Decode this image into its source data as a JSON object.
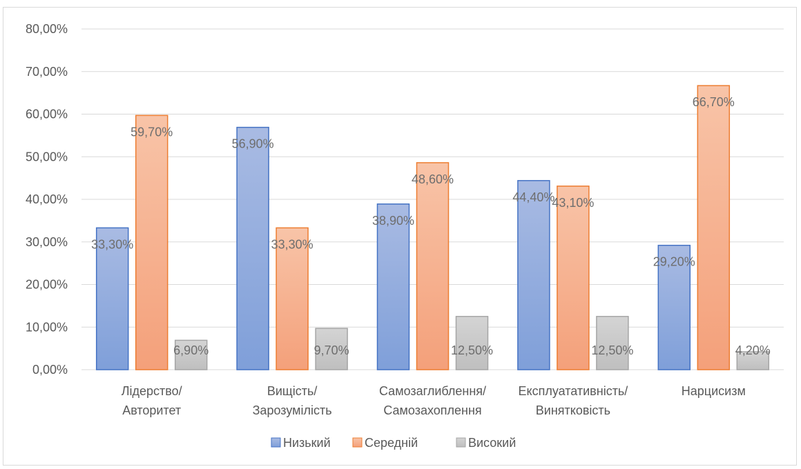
{
  "chart_data": {
    "type": "bar",
    "categories": [
      [
        "Лідерство/",
        "Авторитет"
      ],
      [
        "Вищість/",
        "Зарозумілість"
      ],
      [
        "Самозаглиблення/",
        "Самозахоплення"
      ],
      [
        "Експлуатативність/",
        "Винятковість"
      ],
      [
        "Нарцисизм"
      ]
    ],
    "series": [
      {
        "name": "Низький",
        "values": [
          33.3,
          56.9,
          38.9,
          44.4,
          29.2
        ],
        "labels": [
          "33,30%",
          "56,90%",
          "38,90%",
          "44,40%",
          "29,20%"
        ],
        "color": "#8faadc",
        "gradient": [
          "#a9bbe3",
          "#7f9fd9"
        ],
        "stroke": "#4472c4"
      },
      {
        "name": "Середній",
        "values": [
          59.7,
          33.3,
          48.6,
          43.1,
          66.7
        ],
        "labels": [
          "59,70%",
          "33,30%",
          "48,60%",
          "43,10%",
          "66,70%"
        ],
        "color": "#f4b183",
        "gradient": [
          "#f8c4a8",
          "#f4a07a"
        ],
        "stroke": "#ed7d31"
      },
      {
        "name": "Високий",
        "values": [
          6.9,
          9.7,
          12.5,
          12.5,
          4.2
        ],
        "labels": [
          "6,90%",
          "9,70%",
          "12,50%",
          "12,50%",
          "4,20%"
        ],
        "color": "#c9c9c9",
        "gradient": [
          "#d4d4d4",
          "#bfbfbf"
        ],
        "stroke": "#a5a5a5"
      }
    ],
    "yticks": [
      "0,00%",
      "10,00%",
      "20,00%",
      "30,00%",
      "40,00%",
      "50,00%",
      "60,00%",
      "70,00%",
      "80,00%"
    ],
    "ylim": [
      0,
      80
    ],
    "grid": true,
    "legend_position": "bottom",
    "title": "",
    "xlabel": "",
    "ylabel": ""
  }
}
